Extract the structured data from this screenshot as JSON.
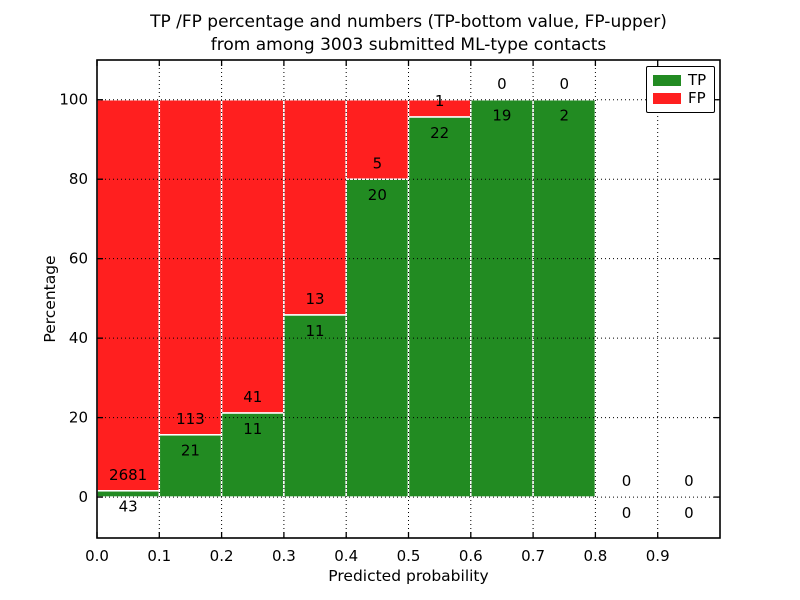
{
  "chart_data": {
    "type": "bar",
    "stacked": true,
    "title_line1": "TP /FP percentage and numbers (TP-bottom value, FP-upper)",
    "title_line2": "from among 3003 submitted ML-type contacts",
    "xlabel": "Predicted probability",
    "ylabel": "Percentage",
    "xlim": [
      0.0,
      1.0
    ],
    "ylim": [
      -10.3,
      110.0
    ],
    "xtick_labels": [
      "0.0",
      "0.1",
      "0.2",
      "0.3",
      "0.4",
      "0.5",
      "0.6",
      "0.7",
      "0.8",
      "0.9"
    ],
    "xtick_values": [
      0.0,
      0.1,
      0.2,
      0.3,
      0.4,
      0.5,
      0.6,
      0.7,
      0.8,
      0.9
    ],
    "ytick_labels": [
      "0",
      "20",
      "40",
      "60",
      "80",
      "100"
    ],
    "ytick_values": [
      0,
      20,
      40,
      60,
      80,
      100
    ],
    "bin_width": 0.1,
    "bin_starts": [
      0.0,
      0.1,
      0.2,
      0.3,
      0.4,
      0.5,
      0.6,
      0.7,
      0.8,
      0.9
    ],
    "series": [
      {
        "name": "TP",
        "color": "#228b22",
        "values": [
          43,
          21,
          11,
          11,
          20,
          22,
          19,
          2,
          0,
          0
        ]
      },
      {
        "name": "FP",
        "color": "#ff1f1f",
        "values": [
          2681,
          113,
          41,
          13,
          5,
          1,
          0,
          0,
          0,
          0
        ]
      }
    ],
    "bar_edge_color": "#ffffff",
    "grid": true,
    "grid_style": "dotted",
    "grid_color": "#000000",
    "legend_position": "upper right",
    "annotation_note": "FP count drawn just above TP/(TP+FP) boundary, TP count just below",
    "annotation_offset_pct": 4
  }
}
